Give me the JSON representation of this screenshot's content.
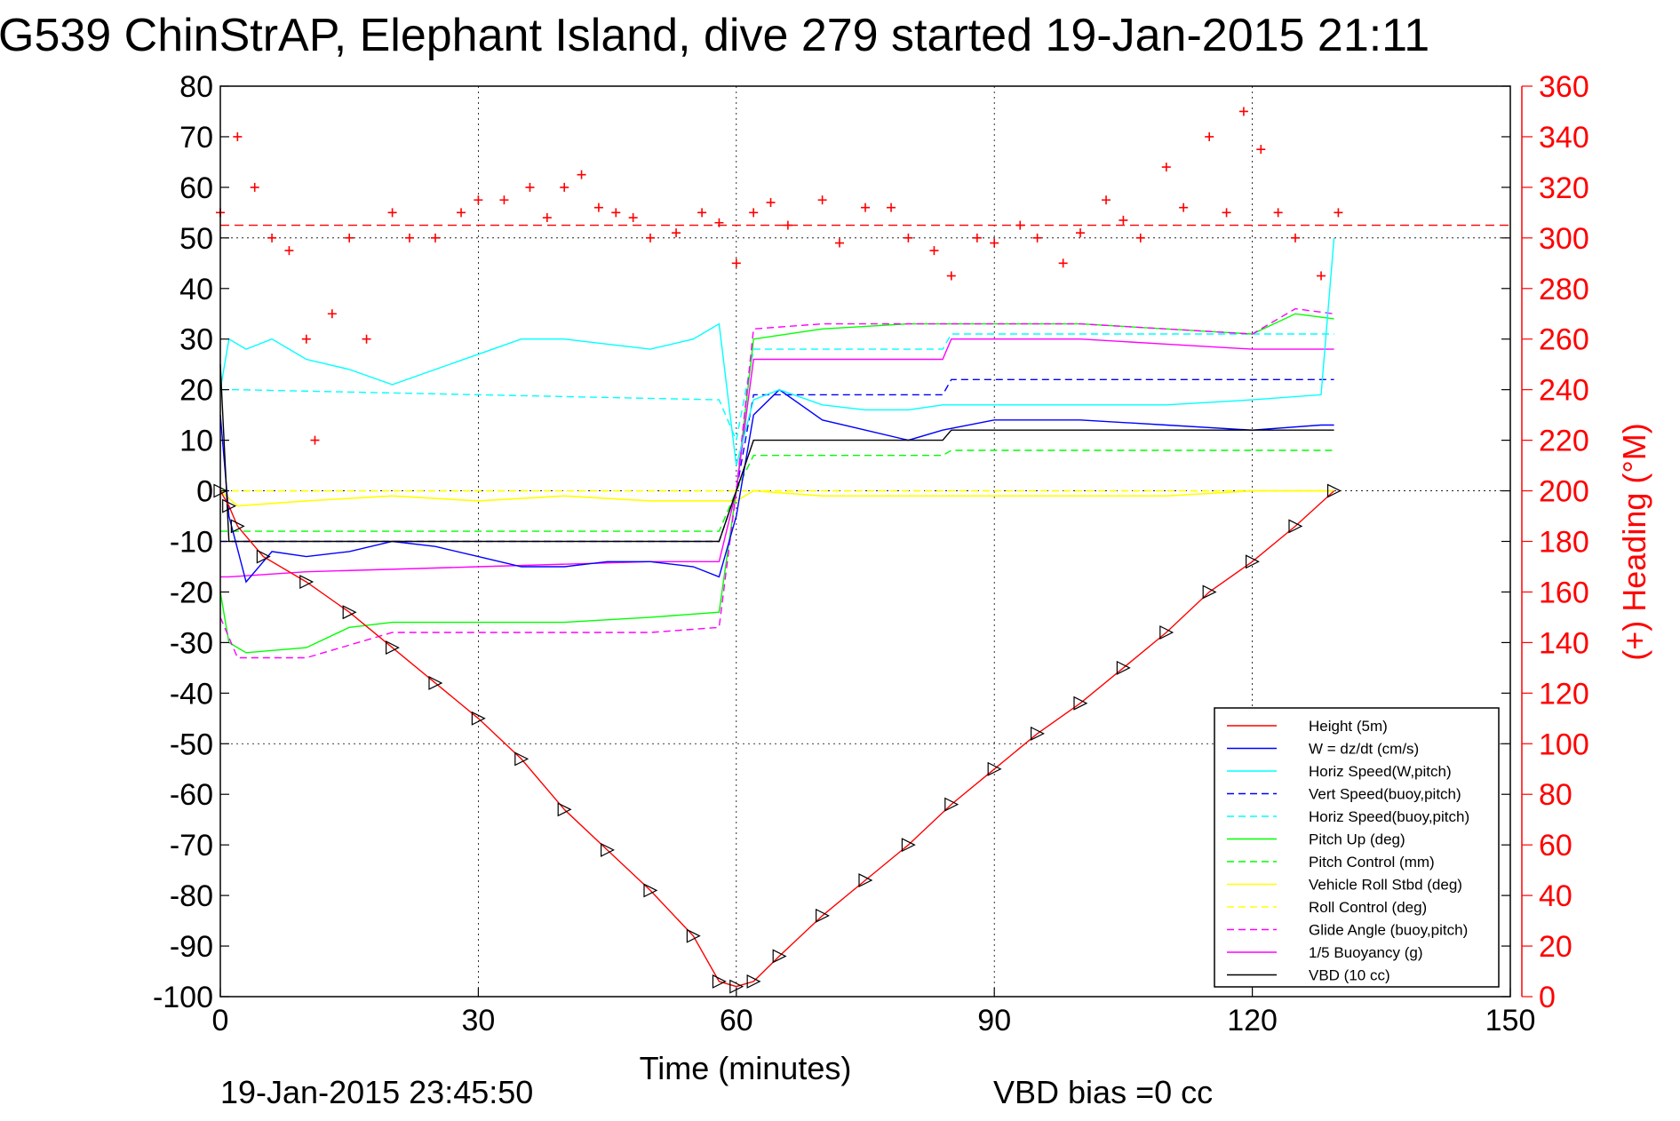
{
  "chart_data": {
    "type": "line",
    "title": "G539 ChinStrAP, Elephant Island, dive 279 started 19-Jan-2015 21:11",
    "xlabel": "Time (minutes)",
    "ylabel_right": "(+) Heading (°M)",
    "footer_left": "19-Jan-2015 23:45:50",
    "footer_right": "VBD bias =0 cc",
    "xlim": [
      0,
      150
    ],
    "ylim": [
      -100,
      80
    ],
    "y2lim": [
      0,
      360
    ],
    "xticks": [
      "0",
      "30",
      "60",
      "90",
      "120",
      "150"
    ],
    "yticks": [
      "80",
      "70",
      "60",
      "50",
      "40",
      "30",
      "20",
      "10",
      "0",
      "-10",
      "-20",
      "-30",
      "-40",
      "-50",
      "-60",
      "-70",
      "-80",
      "-90",
      "-100"
    ],
    "y2ticks": [
      "360",
      "340",
      "320",
      "300",
      "280",
      "260",
      "240",
      "220",
      "200",
      "180",
      "160",
      "140",
      "120",
      "100",
      "80",
      "60",
      "40",
      "20",
      "0"
    ],
    "grid": true,
    "legend_position": "bottom-right",
    "heading_reference": 305,
    "colors": {
      "height": "#ff0000",
      "w": "#0000ff",
      "horiz_speed": "#00ffff",
      "pitch": "#00ff00",
      "roll": "#ffff00",
      "glide": "#ff00ff",
      "vbd": "#000000",
      "heading": "#ff0000"
    },
    "series": [
      {
        "name": "Height (5m)",
        "style": "solid",
        "color": "#ff0000",
        "x": [
          0,
          1,
          2,
          5,
          10,
          15,
          20,
          25,
          30,
          35,
          40,
          45,
          50,
          55,
          58,
          60,
          62,
          65,
          70,
          75,
          80,
          85,
          90,
          95,
          100,
          105,
          110,
          115,
          120,
          125,
          129.5
        ],
        "y": [
          0,
          -3,
          -7,
          -13,
          -18,
          -24,
          -31,
          -38,
          -45,
          -53,
          -63,
          -71,
          -79,
          -88,
          -97,
          -98,
          -97,
          -92,
          -84,
          -77,
          -70,
          -62,
          -55,
          -48,
          -42,
          -35,
          -28,
          -20,
          -14,
          -7,
          0
        ]
      },
      {
        "name": "W = dz/dt (cm/s)",
        "style": "solid",
        "color": "#0000ff",
        "x": [
          0,
          1,
          3,
          6,
          10,
          15,
          20,
          25,
          30,
          35,
          40,
          45,
          50,
          55,
          58,
          60,
          62,
          65,
          70,
          75,
          80,
          84,
          90,
          100,
          110,
          120,
          128,
          129.5
        ],
        "y": [
          15,
          -5,
          -18,
          -12,
          -13,
          -12,
          -10,
          -11,
          -13,
          -15,
          -15,
          -14,
          -14,
          -15,
          -17,
          -5,
          15,
          20,
          14,
          12,
          10,
          12,
          14,
          14,
          13,
          12,
          13,
          13
        ]
      },
      {
        "name": "Horiz Speed(W,pitch)",
        "style": "solid",
        "color": "#00ffff",
        "x": [
          0,
          1,
          3,
          6,
          10,
          15,
          20,
          25,
          30,
          35,
          40,
          45,
          50,
          55,
          58,
          60,
          62,
          65,
          70,
          75,
          80,
          84,
          90,
          100,
          110,
          120,
          128,
          129.5
        ],
        "y": [
          20,
          30,
          28,
          30,
          26,
          24,
          21,
          24,
          27,
          30,
          30,
          29,
          28,
          30,
          33,
          5,
          18,
          20,
          17,
          16,
          16,
          17,
          17,
          17,
          17,
          18,
          19,
          50
        ]
      },
      {
        "name": "Vert Speed(buoy,pitch)",
        "style": "dashed",
        "color": "#0000ff",
        "x": [
          0,
          2,
          58,
          60,
          62,
          84,
          85,
          129.5
        ],
        "y": [
          -10,
          -10,
          -10,
          0,
          19,
          19,
          22,
          22
        ]
      },
      {
        "name": "Horiz Speed(buoy,pitch)",
        "style": "dashed",
        "color": "#00ffff",
        "x": [
          0,
          2,
          58,
          60,
          62,
          84,
          85,
          129.5
        ],
        "y": [
          20,
          20,
          18,
          10,
          28,
          28,
          31,
          31
        ]
      },
      {
        "name": "Pitch Up (deg)",
        "style": "solid",
        "color": "#00ff00",
        "x": [
          0,
          1,
          3,
          10,
          15,
          20,
          30,
          40,
          50,
          58,
          60,
          62,
          70,
          80,
          90,
          100,
          110,
          120,
          125,
          129.5
        ],
        "y": [
          -20,
          -30,
          -32,
          -31,
          -27,
          -26,
          -26,
          -26,
          -25,
          -24,
          0,
          30,
          32,
          33,
          33,
          33,
          32,
          31,
          35,
          34
        ]
      },
      {
        "name": "Pitch Control (mm)",
        "style": "dashed",
        "color": "#00ff00",
        "x": [
          0,
          2,
          58,
          60,
          62,
          84,
          85,
          129.5
        ],
        "y": [
          -8,
          -8,
          -8,
          0,
          7,
          7,
          8,
          8
        ]
      },
      {
        "name": "Vehicle Roll Stbd (deg)",
        "style": "solid",
        "color": "#ffff00",
        "x": [
          0,
          2,
          10,
          20,
          30,
          40,
          50,
          58,
          60,
          62,
          70,
          80,
          90,
          100,
          110,
          120,
          129.5
        ],
        "y": [
          0,
          -3,
          -2,
          -1,
          -2,
          -1,
          -2,
          -2,
          -2,
          0,
          -1,
          -1,
          -1,
          -1,
          -1,
          0,
          0
        ]
      },
      {
        "name": "Roll Control (deg)",
        "style": "dashed",
        "color": "#ffff00",
        "x": [
          0,
          2,
          58,
          60,
          62,
          129.5
        ],
        "y": [
          0,
          0,
          0,
          0,
          0,
          0
        ]
      },
      {
        "name": "Glide Angle (buoy,pitch)",
        "style": "dashed",
        "color": "#ff00ff",
        "x": [
          0,
          2,
          10,
          20,
          30,
          40,
          50,
          58,
          60,
          62,
          70,
          80,
          90,
          100,
          110,
          120,
          125,
          129.5
        ],
        "y": [
          -25,
          -33,
          -33,
          -28,
          -28,
          -28,
          -28,
          -27,
          0,
          32,
          33,
          33,
          33,
          33,
          32,
          31,
          36,
          35
        ]
      },
      {
        "name": "1/5 Buoyancy (g)",
        "style": "solid",
        "color": "#ff00ff",
        "x": [
          0,
          1,
          10,
          30,
          50,
          58,
          60,
          62,
          84,
          85,
          100,
          110,
          120,
          129.5
        ],
        "y": [
          -17,
          -17,
          -16,
          -15,
          -14,
          -14,
          0,
          26,
          26,
          30,
          30,
          29,
          28,
          28
        ]
      },
      {
        "name": "VBD (10 cc)",
        "style": "solid",
        "color": "#000000",
        "x": [
          0,
          1,
          2,
          58,
          60,
          62,
          84,
          85,
          129.5
        ],
        "y": [
          25,
          -10,
          -10,
          -10,
          0,
          10,
          10,
          12,
          12
        ]
      }
    ],
    "heading": {
      "name": "(+) Heading (°M)",
      "color": "#ff0000",
      "x": [
        0,
        2,
        4,
        6,
        8,
        10,
        11,
        13,
        15,
        17,
        20,
        22,
        25,
        28,
        30,
        33,
        36,
        38,
        40,
        42,
        44,
        46,
        48,
        50,
        53,
        56,
        58,
        60,
        62,
        64,
        66,
        70,
        72,
        75,
        78,
        80,
        83,
        85,
        88,
        90,
        93,
        95,
        98,
        100,
        103,
        105,
        107,
        110,
        112,
        115,
        117,
        119,
        121,
        123,
        125,
        128,
        130
      ],
      "y": [
        310,
        340,
        320,
        300,
        295,
        260,
        220,
        270,
        300,
        260,
        310,
        300,
        300,
        310,
        315,
        315,
        320,
        308,
        320,
        325,
        312,
        310,
        308,
        300,
        302,
        310,
        306,
        290,
        310,
        314,
        305,
        315,
        298,
        312,
        312,
        300,
        295,
        285,
        300,
        298,
        305,
        300,
        290,
        302,
        315,
        307,
        300,
        328,
        312,
        340,
        310,
        350,
        335,
        310,
        300,
        285,
        310
      ]
    }
  }
}
